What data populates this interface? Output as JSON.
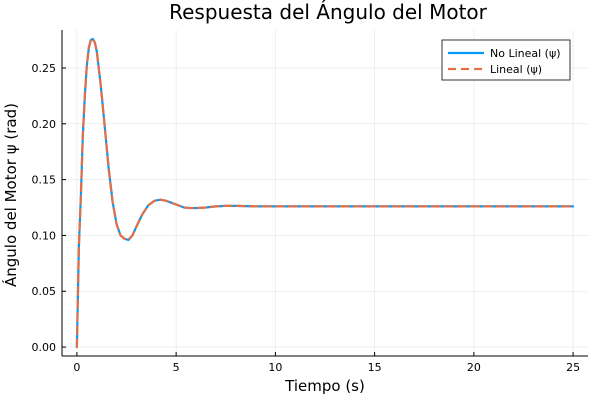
{
  "chart_data": {
    "type": "line",
    "title": "Respuesta del Ángulo del Motor",
    "xlabel": "Tiempo (s)",
    "ylabel": "Ángulo del Motor ψ (rad)",
    "xlim": [
      -0.75,
      25.75
    ],
    "ylim": [
      -0.008,
      0.284
    ],
    "xticks": [
      0,
      5,
      10,
      15,
      20,
      25
    ],
    "yticks": [
      0.0,
      0.05,
      0.1,
      0.15,
      0.2,
      0.25
    ],
    "xtick_labels": [
      "0",
      "5",
      "10",
      "15",
      "20",
      "25"
    ],
    "ytick_labels": [
      "0.00",
      "0.05",
      "0.10",
      "0.15",
      "0.20",
      "0.25"
    ],
    "grid": true,
    "legend_position": "top-right",
    "x": [
      0,
      0.1,
      0.2,
      0.3,
      0.4,
      0.5,
      0.6,
      0.7,
      0.8,
      0.9,
      1.0,
      1.2,
      1.4,
      1.6,
      1.8,
      2.0,
      2.2,
      2.4,
      2.6,
      2.8,
      3.0,
      3.3,
      3.6,
      3.9,
      4.2,
      4.5,
      4.8,
      5.1,
      5.4,
      5.7,
      6.0,
      6.5,
      7.0,
      7.5,
      8.0,
      9.0,
      10.0,
      12.0,
      15.0,
      20.0,
      25.0
    ],
    "series": [
      {
        "name": "No Lineal (ψ)",
        "color": "#009AFA",
        "dash": "solid",
        "values": [
          0.0,
          0.09,
          0.135,
          0.19,
          0.225,
          0.252,
          0.268,
          0.275,
          0.276,
          0.273,
          0.265,
          0.235,
          0.198,
          0.16,
          0.13,
          0.11,
          0.1,
          0.097,
          0.096,
          0.1,
          0.108,
          0.119,
          0.127,
          0.131,
          0.132,
          0.131,
          0.129,
          0.127,
          0.125,
          0.1245,
          0.1245,
          0.125,
          0.126,
          0.1265,
          0.1265,
          0.126,
          0.126,
          0.126,
          0.126,
          0.126,
          0.126
        ]
      },
      {
        "name": "Lineal (ψ)",
        "color": "#E26F46",
        "dash": "dashed",
        "values": [
          0.0,
          0.09,
          0.135,
          0.19,
          0.225,
          0.252,
          0.268,
          0.275,
          0.276,
          0.273,
          0.265,
          0.235,
          0.198,
          0.16,
          0.13,
          0.11,
          0.1,
          0.097,
          0.096,
          0.1,
          0.108,
          0.119,
          0.127,
          0.131,
          0.132,
          0.131,
          0.129,
          0.127,
          0.125,
          0.1245,
          0.1245,
          0.125,
          0.126,
          0.1265,
          0.1265,
          0.126,
          0.126,
          0.126,
          0.126,
          0.126,
          0.126
        ]
      }
    ]
  }
}
